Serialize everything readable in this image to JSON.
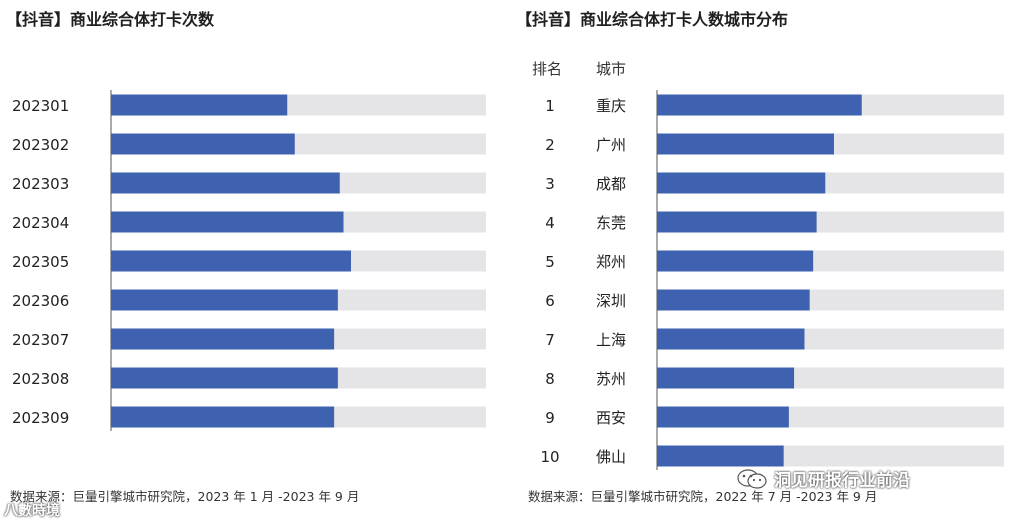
{
  "chart_data": [
    {
      "type": "bar",
      "orientation": "horizontal",
      "title": "【抖音】商业综合体打卡次数",
      "categories": [
        "202301",
        "202302",
        "202303",
        "202304",
        "202305",
        "202306",
        "202307",
        "202308",
        "202309"
      ],
      "values": [
        47,
        49,
        61,
        62,
        64,
        60.5,
        59.5,
        60.5,
        59.5
      ],
      "xlim": [
        0,
        100
      ],
      "source": "数据来源：巨量引擎城市研究院，2023 年 1 月 -2023 年 9 月",
      "bar_color": "#3f62b0",
      "track_color": "#e5e5e8"
    },
    {
      "type": "bar",
      "orientation": "horizontal",
      "title": "【抖音】商业综合体打卡人数城市分布",
      "rank_header": "排名",
      "city_header": "城市",
      "ranks": [
        "1",
        "2",
        "3",
        "4",
        "5",
        "6",
        "7",
        "8",
        "9",
        "10"
      ],
      "categories": [
        "重庆",
        "广州",
        "成都",
        "东莞",
        "郑州",
        "深圳",
        "上海",
        "苏州",
        "西安",
        "佛山"
      ],
      "values": [
        59,
        51,
        48.5,
        46,
        45,
        44,
        42.5,
        39.5,
        38,
        36.5
      ],
      "xlim": [
        0,
        100
      ],
      "source": "数据来源：巨量引擎城市研究院，2022 年 7 月 -2023 年 9 月",
      "bar_color": "#3f62b0",
      "track_color": "#e5e5e8"
    }
  ],
  "watermarks": {
    "right_text": "洞见研报行业前沿",
    "left_text": "八數時境"
  }
}
